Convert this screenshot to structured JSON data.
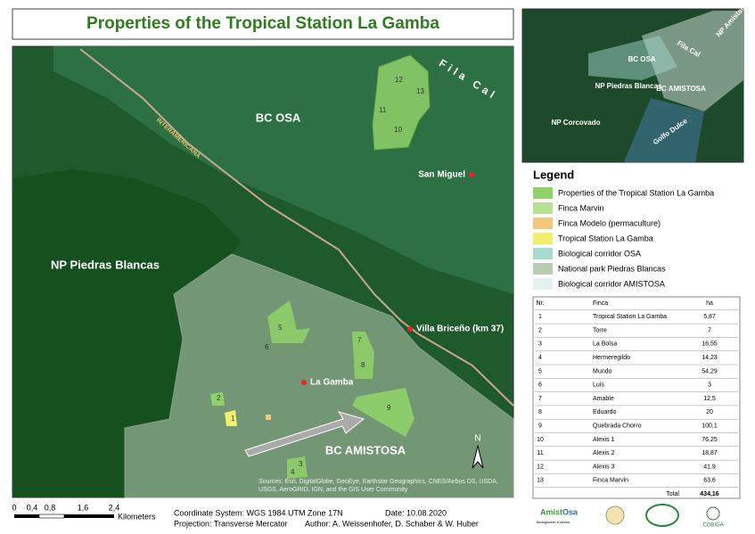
{
  "title": "Properties of the Tropical Station La Gamba",
  "map": {
    "labels": {
      "bc_osa": "BC OSA",
      "np_piedras": "NP Piedras Blancas",
      "bc_amistosa": "BC AMISTOSA",
      "fila_cal": "Fila Cal",
      "road": "INTERAMERICANA",
      "san_miguel": "San Miguel",
      "villa": "Villa Briceño (km 37)",
      "la_gamba": "La Gamba",
      "north": "N"
    },
    "parcels": [
      "1",
      "2",
      "3",
      "4",
      "5",
      "6",
      "7",
      "8",
      "9",
      "10",
      "11",
      "12",
      "13"
    ],
    "source": "Sources: Esri, DigitalGlobe, GeoEye, Earthstar Geographics, CNES/Airbus DS, USDA, USGS, AeroGRID, IGN, and the GIS User Community"
  },
  "inset": {
    "labels": [
      "NP Amistad",
      "Fila Cal",
      "BC OSA",
      "NP Piedras Blancas",
      "BC AMISTOSA",
      "NP Corcovado",
      "Golfo Dulce"
    ]
  },
  "legend": {
    "title": "Legend",
    "items": [
      {
        "label": "Properties of the Tropical Station La Gamba",
        "color": "#8fd16a"
      },
      {
        "label": "Finca Marvin",
        "color": "#b9e193"
      },
      {
        "label": "Finca Modelo (permaculture)",
        "color": "#f2c77a"
      },
      {
        "label": "Tropical Station La Gamba",
        "color": "#f3ef6e"
      },
      {
        "label": "Biological corridor OSA",
        "color": "#a9d9d3"
      },
      {
        "label": "National park Piedras Blancas",
        "color": "#b9cdb0"
      },
      {
        "label": "Biological corridor AMISTOSA",
        "color": "#e3f1ef"
      }
    ]
  },
  "table": {
    "header": [
      "Nr.",
      "Finca",
      "ha"
    ],
    "rows": [
      [
        "1",
        "Tropical Station La Gamba",
        "5,87"
      ],
      [
        "2",
        "Torre",
        "7"
      ],
      [
        "3",
        "La Bolsa",
        "16,55"
      ],
      [
        "4",
        "Hermeregildo",
        "14,23"
      ],
      [
        "5",
        "Mundo",
        "54,29"
      ],
      [
        "6",
        "Luis",
        "3"
      ],
      [
        "7",
        "Amable",
        "12,5"
      ],
      [
        "8",
        "Eduardo",
        "20"
      ],
      [
        "9",
        "Quebrada Chorro",
        "100,1"
      ],
      [
        "10",
        "Alexis 1",
        "76,25"
      ],
      [
        "11",
        "Alexis 2",
        "18,87"
      ],
      [
        "12",
        "Alexis 3",
        "41,9"
      ],
      [
        "13",
        "Finca Marvin",
        "63,6"
      ]
    ],
    "total": [
      "Total",
      "434,16"
    ]
  },
  "footer": {
    "scale": [
      "0",
      "0,4",
      "0,8",
      "1,6",
      "2,4"
    ],
    "scale_unit": "Kilometers",
    "coords": "Coordinate System: WGS 1984 UTM Zone 17N",
    "date": "Date: 10.08.2020",
    "projection": "Projection: Transverse Mercator",
    "author": "Author: A. Weissenhofer, D. Schaber & W. Huber"
  },
  "logos": [
    "Amist",
    "Osa",
    "Biologischer Korridor",
    "COBIGA"
  ]
}
